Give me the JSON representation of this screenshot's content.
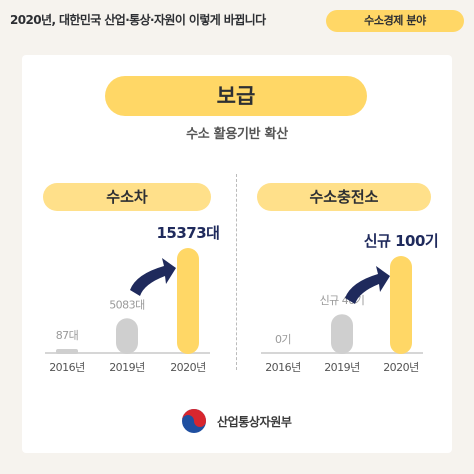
{
  "header": {
    "title": "2020년, 대한민국 산업·통상·자원이 이렇게 바뀝니다",
    "badge": "수소경제 분야"
  },
  "main": {
    "title": "보급",
    "subtitle": "수소 활용기반 확산"
  },
  "chart_data": [
    {
      "type": "bar",
      "title": "수소차",
      "categories": [
        "2016년",
        "2019년",
        "2020년"
      ],
      "values": [
        87,
        5083,
        15373
      ],
      "value_labels": [
        "87대",
        "5083대",
        "15373대"
      ],
      "ylim": [
        0,
        15373
      ],
      "colors": [
        "#cfcfcf",
        "#cfcfcf",
        "#ffd766"
      ],
      "label_colors": [
        "#9a9a9a",
        "#9a9a9a",
        "#1f2a5c"
      ]
    },
    {
      "type": "bar",
      "title": "수소충전소",
      "categories": [
        "2016년",
        "2019년",
        "2020년"
      ],
      "values": [
        0,
        40,
        100
      ],
      "value_labels": [
        "0기",
        "신규 40기",
        "신규 100기"
      ],
      "ylim": [
        0,
        100
      ],
      "colors": [
        "#cfcfcf",
        "#cfcfcf",
        "#ffd766"
      ],
      "label_colors": [
        "#9a9a9a",
        "#9a9a9a",
        "#1f2a5c"
      ]
    }
  ],
  "colors": {
    "accent_yellow": "#ffd766",
    "bar_gray": "#cfcfcf",
    "arrow_navy": "#1f2a5c",
    "background": "#f6f3ee"
  },
  "icons": {
    "logo": "taegeuk-icon",
    "arrow": "curved-arrow-icon"
  },
  "footer": {
    "ministry": "산업통상자원부"
  }
}
